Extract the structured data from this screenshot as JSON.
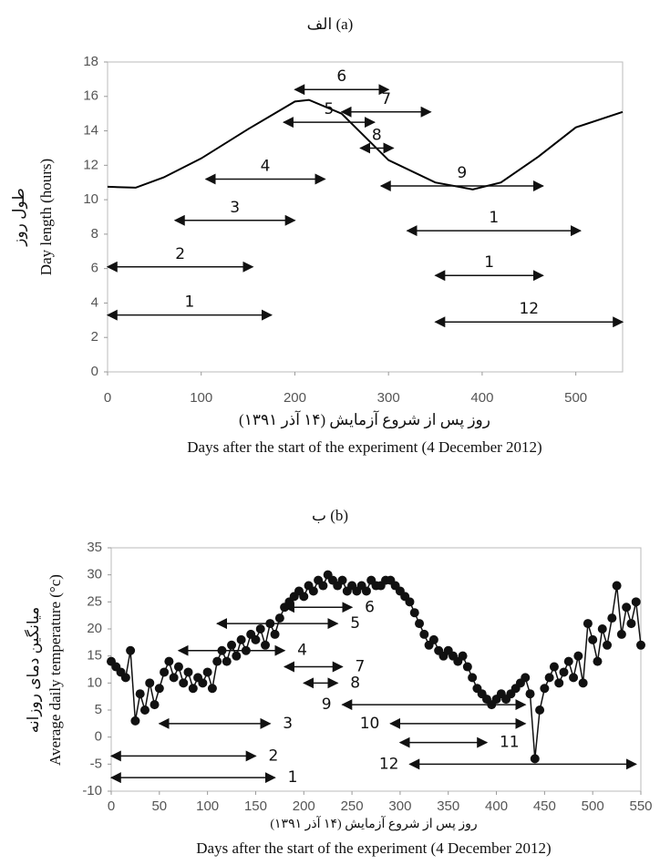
{
  "chart_data": [
    {
      "type": "line",
      "title": "الف (a)",
      "y_label": "Day length (hours)",
      "y_label_fa": "طول روز",
      "x_label_fa": "روز پس از شروع آزمایش (۱۴ آذر ۱۳۹۱)",
      "x_label": "Days after the start of the experiment (4 December 2012)",
      "xlim": [
        0,
        550
      ],
      "xticks": [
        0,
        100,
        200,
        300,
        400,
        500
      ],
      "ylim": [
        0,
        18
      ],
      "yticks": [
        0,
        2,
        4,
        6,
        8,
        10,
        12,
        14,
        16,
        18
      ],
      "color": "#000000",
      "markers": false,
      "x": [
        0,
        30,
        60,
        100,
        150,
        200,
        215,
        250,
        300,
        350,
        390,
        420,
        460,
        500,
        550
      ],
      "values": [
        10.75,
        10.7,
        11.3,
        12.4,
        14.1,
        15.7,
        15.8,
        15.0,
        12.3,
        11.0,
        10.6,
        11.0,
        12.5,
        14.2,
        15.1
      ],
      "arrows": [
        {
          "label": "6",
          "start": 200,
          "end": 300,
          "y": 16.4
        },
        {
          "label": "7",
          "start": 250,
          "end": 345,
          "y": 15.1
        },
        {
          "label": "5",
          "start": 188,
          "end": 285,
          "y": 14.5
        },
        {
          "label": "8",
          "start": 270,
          "end": 305,
          "y": 13.0
        },
        {
          "label": "4",
          "start": 105,
          "end": 232,
          "y": 11.2
        },
        {
          "label": "9",
          "start": 292,
          "end": 465,
          "y": 10.8
        },
        {
          "label": "3",
          "start": 72,
          "end": 200,
          "y": 8.8
        },
        {
          "label": "1",
          "start": 320,
          "end": 505,
          "y": 8.2
        },
        {
          "label": "2",
          "start": 0,
          "end": 155,
          "y": 6.1
        },
        {
          "label": "1",
          "start": 350,
          "end": 465,
          "y": 5.6
        },
        {
          "label": "1",
          "start": 0,
          "end": 175,
          "y": 3.3
        },
        {
          "label": "12",
          "start": 350,
          "end": 550,
          "y": 2.9
        }
      ]
    },
    {
      "type": "line",
      "title": "ب (b)",
      "y_label": "Average daily temperature (°c)",
      "y_label_fa": "میانگین دمای روزانه",
      "x_label_fa": "روز پس از شروع آزمایش (۱۴ آذر ۱۳۹۱)",
      "x_label": "Days after the start of the experiment (4 December 2012)",
      "xlim": [
        0,
        550
      ],
      "xticks": [
        0,
        50,
        100,
        150,
        200,
        250,
        300,
        350,
        400,
        450,
        500,
        550
      ],
      "ylim": [
        -10,
        35
      ],
      "yticks": [
        -10,
        -5,
        0,
        5,
        10,
        15,
        20,
        25,
        30,
        35
      ],
      "color": "#111111",
      "markers": true,
      "x": [
        0,
        5,
        10,
        15,
        20,
        25,
        30,
        35,
        40,
        45,
        50,
        55,
        60,
        65,
        70,
        75,
        80,
        85,
        90,
        95,
        100,
        105,
        110,
        115,
        120,
        125,
        130,
        135,
        140,
        145,
        150,
        155,
        160,
        165,
        170,
        175,
        180,
        185,
        190,
        195,
        200,
        205,
        210,
        215,
        220,
        225,
        230,
        235,
        240,
        245,
        250,
        255,
        260,
        265,
        270,
        275,
        280,
        285,
        290,
        295,
        300,
        305,
        310,
        315,
        320,
        325,
        330,
        335,
        340,
        345,
        350,
        355,
        360,
        365,
        370,
        375,
        380,
        385,
        390,
        395,
        400,
        405,
        410,
        415,
        420,
        425,
        430,
        435,
        440,
        445,
        450,
        455,
        460,
        465,
        470,
        475,
        480,
        485,
        490,
        495,
        500,
        505,
        510,
        515,
        520,
        525,
        530,
        535,
        540,
        545,
        550
      ],
      "values": [
        14,
        13,
        12,
        11,
        16,
        3,
        8,
        5,
        10,
        6,
        9,
        12,
        14,
        11,
        13,
        10,
        12,
        9,
        11,
        10,
        12,
        9,
        14,
        16,
        14,
        17,
        15,
        18,
        16,
        19,
        18,
        20,
        17,
        21,
        19,
        22,
        24,
        25,
        26,
        27,
        26,
        28,
        27,
        29,
        28,
        30,
        29,
        28,
        29,
        27,
        28,
        27,
        28,
        27,
        29,
        28,
        28,
        29,
        29,
        28,
        27,
        26,
        25,
        23,
        21,
        19,
        17,
        18,
        16,
        15,
        16,
        15,
        14,
        15,
        13,
        11,
        9,
        8,
        7,
        6,
        7,
        8,
        7,
        8,
        9,
        10,
        11,
        8,
        -4,
        5,
        9,
        11,
        13,
        10,
        12,
        14,
        11,
        15,
        10,
        21,
        18,
        14,
        20,
        17,
        22,
        28,
        19,
        24,
        21,
        25,
        17
      ],
      "arrows": [
        {
          "label": "6",
          "start": 180,
          "end": 250,
          "y": 24
        },
        {
          "label": "5",
          "start": 110,
          "end": 235,
          "y": 21
        },
        {
          "label": "4",
          "start": 70,
          "end": 180,
          "y": 16
        },
        {
          "label": "7",
          "start": 180,
          "end": 240,
          "y": 13
        },
        {
          "label": "8",
          "start": 200,
          "end": 235,
          "y": 10
        },
        {
          "label": "9",
          "start": 240,
          "end": 430,
          "y": 6
        },
        {
          "label": "3",
          "start": 50,
          "end": 165,
          "y": 2.5
        },
        {
          "label": "10",
          "start": 290,
          "end": 430,
          "y": 2.5
        },
        {
          "label": "11",
          "start": 300,
          "end": 390,
          "y": -1
        },
        {
          "label": "2",
          "start": 0,
          "end": 150,
          "y": -3.5
        },
        {
          "label": "12",
          "start": 310,
          "end": 545,
          "y": -5
        },
        {
          "label": "1",
          "start": 0,
          "end": 170,
          "y": -7.5
        }
      ]
    }
  ]
}
